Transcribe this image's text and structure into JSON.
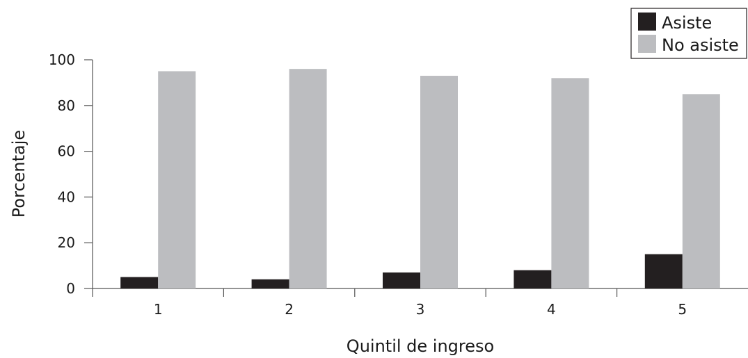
{
  "chart_data": {
    "type": "bar",
    "xlabel": "Quintil de ingreso",
    "ylabel": "Porcentaje",
    "categories": [
      "1",
      "2",
      "3",
      "4",
      "5"
    ],
    "series": [
      {
        "name": "Asiste",
        "values": [
          5,
          4,
          7,
          8,
          15
        ],
        "color": "#231f20"
      },
      {
        "name": "No asiste",
        "values": [
          95,
          96,
          93,
          92,
          85
        ],
        "color": "#bcbdc0"
      }
    ],
    "ylim": [
      0,
      100
    ],
    "yticks": [
      "0",
      "20",
      "40",
      "60",
      "80",
      "100"
    ],
    "grid": false,
    "legend_position": "top-right"
  }
}
